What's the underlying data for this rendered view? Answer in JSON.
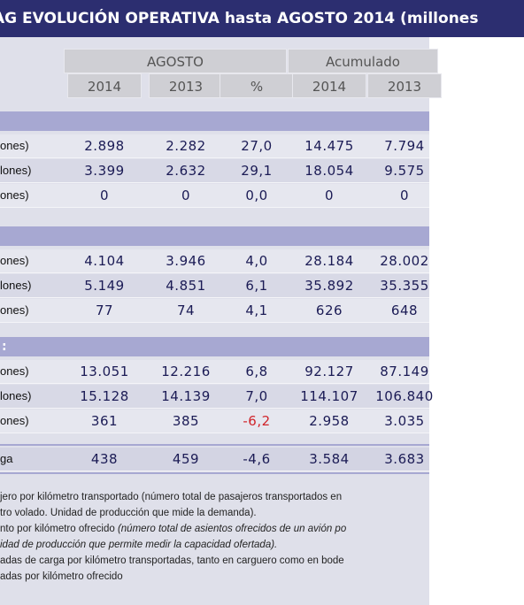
{
  "title": "AG EVOLUCIÓN OPERATIVA hasta AGOSTO 2014 (millones",
  "header": {
    "groups": [
      "AGOSTO",
      "Acumulado"
    ],
    "columns": [
      "2014",
      "2013",
      "%",
      "2014",
      "2013"
    ]
  },
  "sections": [
    {
      "rows": [
        {
          "label": "ones)",
          "values": [
            "2.898",
            "2.282",
            "27,0",
            "14.475",
            "7.794"
          ]
        },
        {
          "label": "lones)",
          "values": [
            "3.399",
            "2.632",
            "29,1",
            "18.054",
            "9.575"
          ]
        },
        {
          "label": "ones)",
          "values": [
            "0",
            "0",
            "0,0",
            "0",
            "0"
          ]
        }
      ]
    },
    {
      "rows": [
        {
          "label": "ones)",
          "values": [
            "4.104",
            "3.946",
            "4,0",
            "28.184",
            "28.002"
          ]
        },
        {
          "label": "lones)",
          "values": [
            "5.149",
            "4.851",
            "6,1",
            "35.892",
            "35.355"
          ]
        },
        {
          "label": "ones)",
          "values": [
            "77",
            "74",
            "4,1",
            "626",
            "648"
          ]
        }
      ]
    },
    {
      "label": ":",
      "rows": [
        {
          "label": "ones)",
          "values": [
            "13.051",
            "12.216",
            "6,8",
            "92.127",
            "87.149"
          ]
        },
        {
          "label": "lones)",
          "values": [
            "15.128",
            "14.139",
            "7,0",
            "114.107",
            "106.840"
          ]
        },
        {
          "label": "ones)",
          "values": [
            "361",
            "385",
            "-6,2",
            "2.958",
            "3.035"
          ],
          "red": [
            2
          ]
        }
      ]
    }
  ],
  "total": {
    "label": "ga",
    "values": [
      "438",
      "459",
      "-4,6",
      "3.584",
      "3.683"
    ]
  },
  "footnotes": [
    [
      {
        "text": "jero por kilómetro transportado (número total de pasajeros transportados en"
      }
    ],
    [
      {
        "text": "tro volado. Unidad de producción que mide la demanda)."
      }
    ],
    [
      {
        "text": "nto por kilómetro ofrecido "
      },
      {
        "text": "(número total de asientos ofrecidos de un avión po",
        "italic": true
      }
    ],
    [
      {
        "text": "idad de producción que permite medir la capacidad ofertada).",
        "italic": true
      }
    ],
    [
      {
        "text": "adas de carga por kilómetro transportadas, tanto en carguero como en bode"
      }
    ],
    [
      {
        "text": "adas por kilómetro ofrecido"
      }
    ]
  ]
}
